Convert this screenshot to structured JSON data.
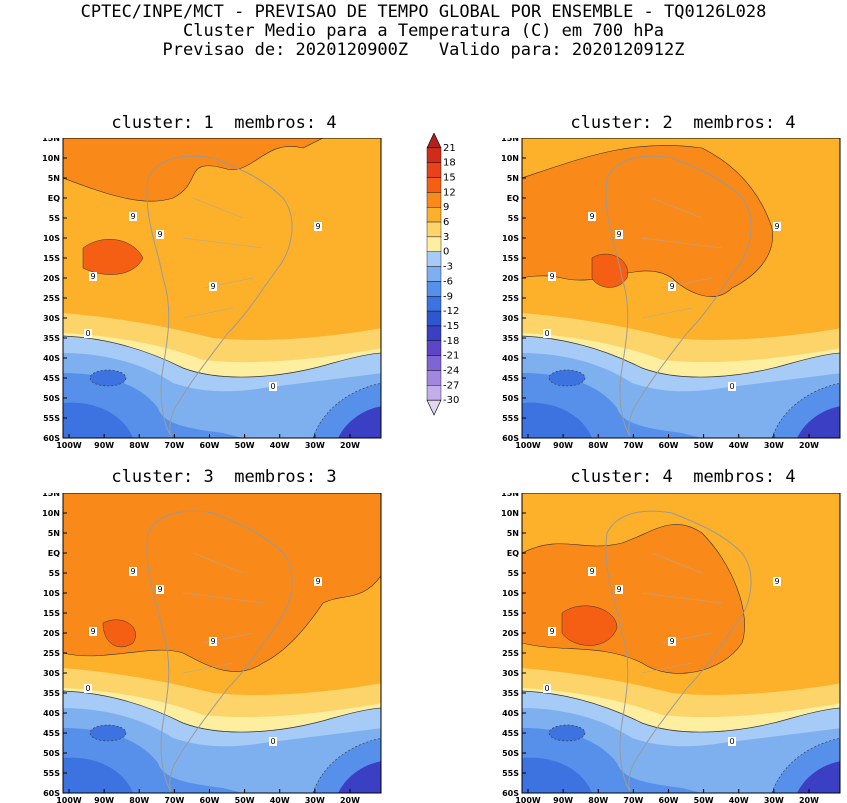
{
  "header": {
    "line1": "CPTEC/INPE/MCT - PREVISAO DE TEMPO GLOBAL POR ENSEMBLE - TQ0126L028",
    "line2": "Cluster Medio para a Temperatura (C) em 700 hPa",
    "line3": "Previsao de: 2020120900Z   Valido para: 2020120912Z"
  },
  "panels": [
    {
      "title": "cluster: 1  membros: 4"
    },
    {
      "title": "cluster: 2  membros: 4"
    },
    {
      "title": "cluster: 3  membros: 3"
    },
    {
      "title": "cluster: 4  membros: 4"
    }
  ],
  "lat_labels": [
    "15N",
    "10N",
    "5N",
    "EQ",
    "5S",
    "10S",
    "15S",
    "20S",
    "25S",
    "30S",
    "35S",
    "40S",
    "45S",
    "50S",
    "55S",
    "60S"
  ],
  "lon_labels": [
    "100W",
    "90W",
    "80W",
    "70W",
    "60W",
    "50W",
    "40W",
    "30W",
    "20W"
  ],
  "colorbar": {
    "labels": [
      "21",
      "18",
      "15",
      "12",
      "9",
      "6",
      "3",
      "0",
      "-3",
      "-6",
      "-9",
      "-12",
      "-15",
      "-18",
      "-21",
      "-24",
      "-27",
      "-30"
    ],
    "colors": [
      "#b0201c",
      "#d02c1c",
      "#e8421a",
      "#f45f14",
      "#f98a1a",
      "#fdb12a",
      "#fdd46a",
      "#fdeea0",
      "#a6cbf6",
      "#7eb0f0",
      "#5690ea",
      "#3c73e0",
      "#2d56d0",
      "#3a3fc4",
      "#5c45c8",
      "#7f64d4",
      "#a287e0",
      "#c3adea",
      "#e2d6f4"
    ]
  },
  "contour_labels": [
    "9",
    "9",
    "9",
    "9",
    "9",
    "9",
    "9",
    "0",
    "0",
    "-9"
  ],
  "colors": {
    "orange": "#fdb12a",
    "dark_orange": "#f98a1a",
    "red_orange": "#f45f14",
    "light_yellow": "#fdd46a",
    "pale_yellow": "#fdeea0",
    "light_blue": "#a6cbf6",
    "blue": "#7eb0f0",
    "dark_blue": "#5690ea",
    "deep_blue": "#3c73e0",
    "purple": "#3a3fc4"
  }
}
